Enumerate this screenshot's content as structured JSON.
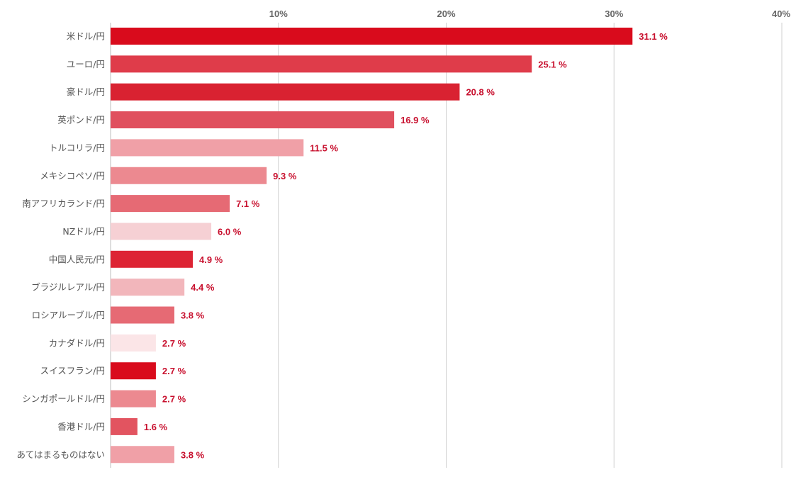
{
  "chart_data": {
    "type": "bar",
    "orientation": "horizontal",
    "title": "",
    "xlabel": "",
    "ylabel": "",
    "xlim": [
      0,
      40
    ],
    "ticks": [
      {
        "value": 10,
        "label": "10%"
      },
      {
        "value": 20,
        "label": "20%"
      },
      {
        "value": 30,
        "label": "30%"
      },
      {
        "value": 40,
        "label": "40%"
      }
    ],
    "grid": true,
    "categories": [
      "米ドル/円",
      "ユーロ/円",
      "豪ドル/円",
      "英ポンド/円",
      "トルコリラ/円",
      "メキシコペソ/円",
      "南アフリカランド/円",
      "NZドル/円",
      "中国人民元/円",
      "ブラジルレアル/円",
      "ロシアルーブル/円",
      "カナダドル/円",
      "スイスフラン/円",
      "シンガポールドル/円",
      "香港ドル/円",
      "あてはまるものはない"
    ],
    "values": [
      31.1,
      25.1,
      20.8,
      16.9,
      11.5,
      9.3,
      7.1,
      6.0,
      4.9,
      4.4,
      3.8,
      2.7,
      2.7,
      2.7,
      1.6,
      3.8
    ],
    "value_labels": [
      "31.1 %",
      "25.1 %",
      "20.8 %",
      "16.9 %",
      "11.5 %",
      "9.3 %",
      "7.1 %",
      "6.0 %",
      "4.9 %",
      "4.4 %",
      "3.8 %",
      "2.7 %",
      "2.7 %",
      "2.7 %",
      "1.6 %",
      "3.8 %"
    ],
    "bar_colors": [
      "#d90b1c",
      "#df3c4a",
      "#d92231",
      "#e0505e",
      "#f0a0a7",
      "#ec8990",
      "#e66a74",
      "#f6d0d4",
      "#dd2434",
      "#f2b6bb",
      "#e66a74",
      "#fbe5e7",
      "#d90b1c",
      "#ec8990",
      "#e25460",
      "#f0a0a7"
    ],
    "label_color": "#c8102e"
  }
}
